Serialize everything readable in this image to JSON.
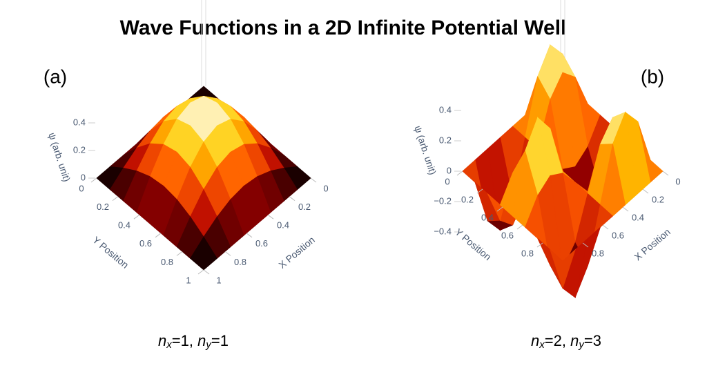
{
  "title": "Wave Functions in a 2D Infinite Potential Well",
  "chart_data": [
    {
      "type": "surface",
      "label": "(a)",
      "caption": [
        "n",
        "x",
        "=1, ",
        "n",
        "y",
        "=1"
      ],
      "xlabel": "X Position",
      "ylabel": "Y Position",
      "zlabel": "ψ (arb. unit)",
      "x": [
        0,
        0.125,
        0.25,
        0.375,
        0.5,
        0.625,
        0.75,
        0.875,
        1
      ],
      "y": [
        0,
        0.125,
        0.25,
        0.375,
        0.5,
        0.625,
        0.75,
        0.875,
        1
      ],
      "z": [
        [
          0,
          0,
          0,
          0,
          0,
          0,
          0,
          0,
          0
        ],
        [
          0,
          0.073,
          0.135,
          0.177,
          0.192,
          0.177,
          0.135,
          0.073,
          0
        ],
        [
          0,
          0.135,
          0.25,
          0.327,
          0.354,
          0.327,
          0.25,
          0.135,
          0
        ],
        [
          0,
          0.177,
          0.327,
          0.427,
          0.462,
          0.427,
          0.327,
          0.177,
          0
        ],
        [
          0,
          0.192,
          0.354,
          0.462,
          0.5,
          0.462,
          0.354,
          0.192,
          0
        ],
        [
          0,
          0.177,
          0.327,
          0.427,
          0.462,
          0.427,
          0.327,
          0.177,
          0
        ],
        [
          0,
          0.135,
          0.25,
          0.327,
          0.354,
          0.327,
          0.25,
          0.135,
          0
        ],
        [
          0,
          0.073,
          0.135,
          0.177,
          0.192,
          0.177,
          0.135,
          0.073,
          0
        ],
        [
          0,
          0,
          0,
          0,
          0,
          0,
          0,
          0,
          0
        ]
      ],
      "xlim": [
        0,
        1
      ],
      "ylim": [
        0,
        1
      ],
      "zlim": [
        0,
        0.5
      ],
      "xticks": [
        0,
        0.2,
        0.4,
        0.6,
        0.8,
        1
      ],
      "yticks": [
        0,
        0.2,
        0.4,
        0.6,
        0.8,
        1
      ],
      "zticks": [
        0,
        0.2,
        0.4
      ],
      "colorscale": [
        "#000000",
        "#b30000",
        "#ff5a00",
        "#ffcc00",
        "#ffffff"
      ]
    },
    {
      "type": "surface",
      "label": "(b)",
      "caption": [
        "n",
        "x",
        "=2, ",
        "n",
        "y",
        "=3"
      ],
      "xlabel": "X Position",
      "ylabel": "Y Position",
      "zlabel": "ψ (arb. unit)",
      "x": [
        0,
        0.125,
        0.25,
        0.375,
        0.5,
        0.625,
        0.75,
        0.875,
        1
      ],
      "y": [
        0,
        0.125,
        0.25,
        0.375,
        0.5,
        0.625,
        0.75,
        0.875,
        1
      ],
      "z": [
        [
          0,
          0,
          0,
          0,
          0,
          0,
          0,
          0,
          0
        ],
        [
          0,
          0.327,
          0.462,
          0.327,
          0,
          -0.327,
          -0.462,
          -0.327,
          0
        ],
        [
          0,
          0.25,
          0.354,
          0.25,
          0,
          -0.25,
          -0.354,
          -0.25,
          0
        ],
        [
          0,
          -0.135,
          -0.192,
          -0.135,
          0,
          0.135,
          0.192,
          0.135,
          0
        ],
        [
          0,
          -0.354,
          -0.5,
          -0.354,
          0,
          0.354,
          0.5,
          0.354,
          0
        ],
        [
          0,
          -0.135,
          -0.192,
          -0.135,
          0,
          0.135,
          0.192,
          0.135,
          0
        ],
        [
          0,
          0.25,
          0.354,
          0.25,
          0,
          -0.25,
          -0.354,
          -0.25,
          0
        ],
        [
          0,
          0.327,
          0.462,
          0.327,
          0,
          -0.327,
          -0.462,
          -0.327,
          0
        ],
        [
          0,
          0,
          0,
          0,
          0,
          0,
          0,
          0,
          0
        ]
      ],
      "xlim": [
        0,
        1
      ],
      "ylim": [
        0,
        1
      ],
      "zlim": [
        -0.5,
        0.5
      ],
      "xticks": [
        0,
        0.2,
        0.4,
        0.6,
        0.8
      ],
      "yticks": [
        0,
        0.2,
        0.4,
        0.6,
        0.8
      ],
      "zticks": [
        {
          "value": -0.4,
          "label": "−0.4"
        },
        {
          "value": -0.2,
          "label": "−0.2"
        },
        0,
        0.2,
        0.4
      ],
      "colorscale": [
        "#000000",
        "#b30000",
        "#ff5a00",
        "#ffcc00",
        "#ffffff"
      ]
    }
  ]
}
